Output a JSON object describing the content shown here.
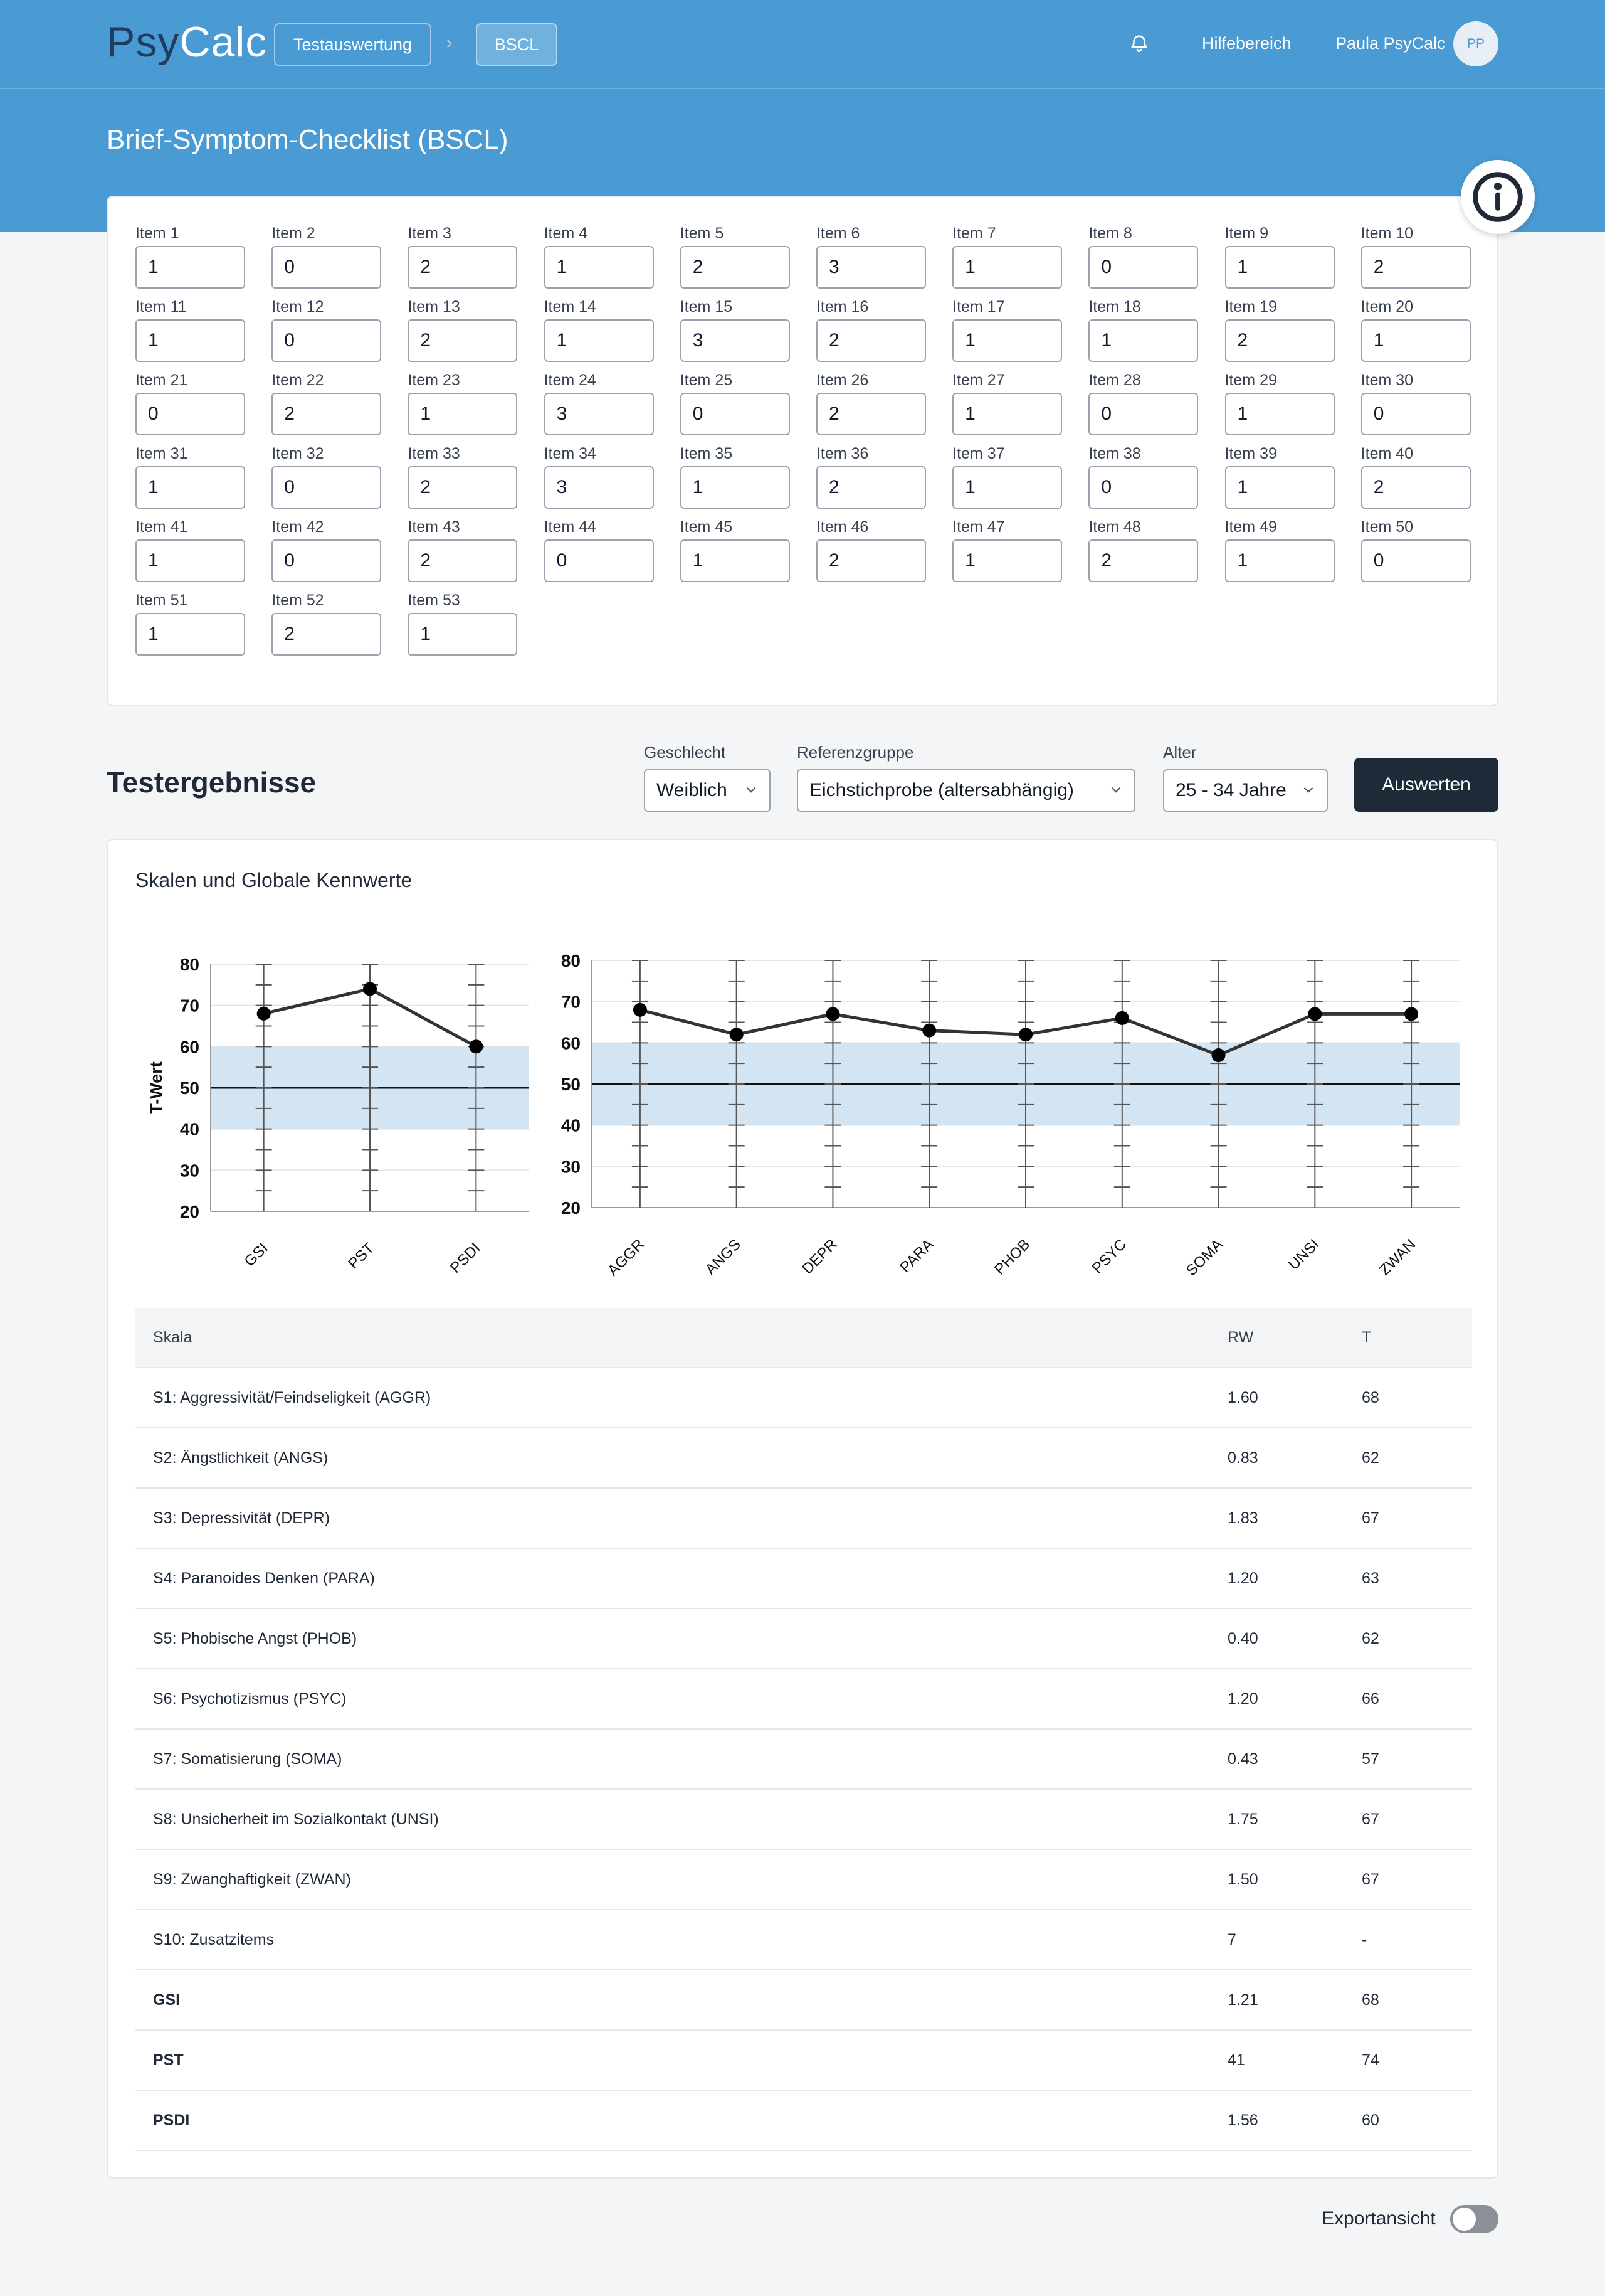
{
  "header": {
    "logo_part1": "Psy",
    "logo_part2": "Calc",
    "breadcrumbs": [
      "Testauswertung",
      "BSCL"
    ],
    "help_label": "Hilfebereich",
    "user_name": "Paula PsyCalc",
    "avatar_initials": "PP"
  },
  "page": {
    "title": "Brief-Symptom-Checklist (BSCL)"
  },
  "items": [
    {
      "label": "Item 1",
      "value": "1"
    },
    {
      "label": "Item 2",
      "value": "0"
    },
    {
      "label": "Item 3",
      "value": "2"
    },
    {
      "label": "Item 4",
      "value": "1"
    },
    {
      "label": "Item 5",
      "value": "2"
    },
    {
      "label": "Item 6",
      "value": "3"
    },
    {
      "label": "Item 7",
      "value": "1"
    },
    {
      "label": "Item 8",
      "value": "0"
    },
    {
      "label": "Item 9",
      "value": "1"
    },
    {
      "label": "Item 10",
      "value": "2"
    },
    {
      "label": "Item 11",
      "value": "1"
    },
    {
      "label": "Item 12",
      "value": "0"
    },
    {
      "label": "Item 13",
      "value": "2"
    },
    {
      "label": "Item 14",
      "value": "1"
    },
    {
      "label": "Item 15",
      "value": "3"
    },
    {
      "label": "Item 16",
      "value": "2"
    },
    {
      "label": "Item 17",
      "value": "1"
    },
    {
      "label": "Item 18",
      "value": "1"
    },
    {
      "label": "Item 19",
      "value": "2"
    },
    {
      "label": "Item 20",
      "value": "1"
    },
    {
      "label": "Item 21",
      "value": "0"
    },
    {
      "label": "Item 22",
      "value": "2"
    },
    {
      "label": "Item 23",
      "value": "1"
    },
    {
      "label": "Item 24",
      "value": "3"
    },
    {
      "label": "Item 25",
      "value": "0"
    },
    {
      "label": "Item 26",
      "value": "2"
    },
    {
      "label": "Item 27",
      "value": "1"
    },
    {
      "label": "Item 28",
      "value": "0"
    },
    {
      "label": "Item 29",
      "value": "1"
    },
    {
      "label": "Item 30",
      "value": "0"
    },
    {
      "label": "Item 31",
      "value": "1"
    },
    {
      "label": "Item 32",
      "value": "0"
    },
    {
      "label": "Item 33",
      "value": "2"
    },
    {
      "label": "Item 34",
      "value": "3"
    },
    {
      "label": "Item 35",
      "value": "1"
    },
    {
      "label": "Item 36",
      "value": "2"
    },
    {
      "label": "Item 37",
      "value": "1"
    },
    {
      "label": "Item 38",
      "value": "0"
    },
    {
      "label": "Item 39",
      "value": "1"
    },
    {
      "label": "Item 40",
      "value": "2"
    },
    {
      "label": "Item 41",
      "value": "1"
    },
    {
      "label": "Item 42",
      "value": "0"
    },
    {
      "label": "Item 43",
      "value": "2"
    },
    {
      "label": "Item 44",
      "value": "0"
    },
    {
      "label": "Item 45",
      "value": "1"
    },
    {
      "label": "Item 46",
      "value": "2"
    },
    {
      "label": "Item 47",
      "value": "1"
    },
    {
      "label": "Item 48",
      "value": "2"
    },
    {
      "label": "Item 49",
      "value": "1"
    },
    {
      "label": "Item 50",
      "value": "0"
    },
    {
      "label": "Item 51",
      "value": "1"
    },
    {
      "label": "Item 52",
      "value": "2"
    },
    {
      "label": "Item 53",
      "value": "1"
    }
  ],
  "results": {
    "title": "Testergebnisse",
    "gender_label": "Geschlecht",
    "gender_value": "Weiblich",
    "refgroup_label": "Referenzgruppe",
    "refgroup_value": "Eichstichprobe (altersabhängig)",
    "age_label": "Alter",
    "age_value": "25 - 34 Jahre",
    "evaluate_label": "Auswerten",
    "chart_title": "Skalen und Globale Kennwerte",
    "table_headers": [
      "Skala",
      "RW",
      "T"
    ],
    "rows": [
      {
        "skala": "S1: Aggressivität/Feindseligkeit (AGGR)",
        "rw": "1.60",
        "t": "68",
        "bold": false
      },
      {
        "skala": "S2: Ängstlichkeit (ANGS)",
        "rw": "0.83",
        "t": "62",
        "bold": false
      },
      {
        "skala": "S3: Depressivität (DEPR)",
        "rw": "1.83",
        "t": "67",
        "bold": false
      },
      {
        "skala": "S4: Paranoides Denken (PARA)",
        "rw": "1.20",
        "t": "63",
        "bold": false
      },
      {
        "skala": "S5: Phobische Angst (PHOB)",
        "rw": "0.40",
        "t": "62",
        "bold": false
      },
      {
        "skala": "S6: Psychotizismus (PSYC)",
        "rw": "1.20",
        "t": "66",
        "bold": false
      },
      {
        "skala": "S7: Somatisierung (SOMA)",
        "rw": "0.43",
        "t": "57",
        "bold": false
      },
      {
        "skala": "S8: Unsicherheit im Sozialkontakt (UNSI)",
        "rw": "1.75",
        "t": "67",
        "bold": false
      },
      {
        "skala": "S9: Zwanghaftigkeit (ZWAN)",
        "rw": "1.50",
        "t": "67",
        "bold": false
      },
      {
        "skala": "S10: Zusatzitems",
        "rw": "7",
        "t": "-",
        "bold": false
      },
      {
        "skala": "GSI",
        "rw": "1.21",
        "t": "68",
        "bold": true
      },
      {
        "skala": "PST",
        "rw": "41",
        "t": "74",
        "bold": true
      },
      {
        "skala": "PSDI",
        "rw": "1.56",
        "t": "60",
        "bold": true
      }
    ],
    "export_label": "Exportansicht",
    "export_enabled": false
  },
  "chart_data": [
    {
      "type": "line",
      "categories": [
        "GSI",
        "PST",
        "PSDI"
      ],
      "values": [
        68,
        74,
        60
      ],
      "ylabel": "T-Wert",
      "ylim": [
        20,
        80
      ],
      "yticks": [
        20,
        30,
        40,
        50,
        60,
        70,
        80
      ],
      "norm_band": [
        40,
        60
      ],
      "reference_line": 50,
      "band_color": "#d3e5f3",
      "line_color": "#333333"
    },
    {
      "type": "line",
      "categories": [
        "AGGR",
        "ANGS",
        "DEPR",
        "PARA",
        "PHOB",
        "PSYC",
        "SOMA",
        "UNSI",
        "ZWAN"
      ],
      "values": [
        68,
        62,
        67,
        63,
        62,
        66,
        57,
        67,
        67
      ],
      "ylim": [
        20,
        80
      ],
      "yticks": [
        20,
        30,
        40,
        50,
        60,
        70,
        80
      ],
      "norm_band": [
        40,
        60
      ],
      "reference_line": 50,
      "band_color": "#d3e5f3",
      "line_color": "#333333"
    }
  ],
  "icons": {
    "bell": "bell-icon",
    "info": "info-icon",
    "chevron": "chevron-down-icon",
    "breadcrumb_sep": "chevron-right-icon"
  }
}
